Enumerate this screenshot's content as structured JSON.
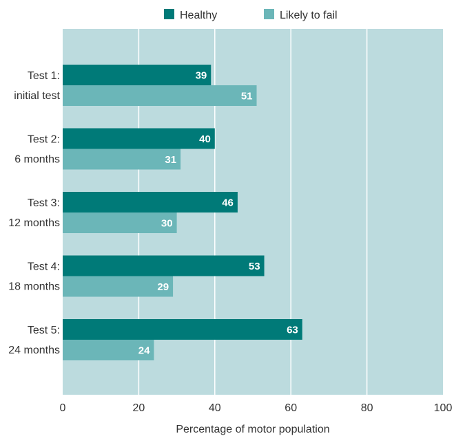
{
  "chart_data": {
    "type": "bar",
    "orientation": "horizontal",
    "categories": [
      [
        "Test 1:",
        "initial test"
      ],
      [
        "Test 2:",
        "6 months"
      ],
      [
        "Test 3:",
        "12 months"
      ],
      [
        "Test 4:",
        "18 months"
      ],
      [
        "Test 5:",
        "24 months"
      ]
    ],
    "series": [
      {
        "name": "Healthy",
        "color": "#007a78",
        "values": [
          39,
          40,
          46,
          53,
          63
        ]
      },
      {
        "name": "Likely to fail",
        "color": "#6bb6b8",
        "values": [
          51,
          31,
          30,
          29,
          24
        ]
      }
    ],
    "xlabel": "Percentage of motor population",
    "ylabel": "",
    "xlim": [
      0,
      100
    ],
    "xticks": [
      0,
      20,
      40,
      60,
      80,
      100
    ],
    "grid": true,
    "legend_position": "top-center",
    "plot_background": "#bcdbde",
    "data_labels": true
  }
}
